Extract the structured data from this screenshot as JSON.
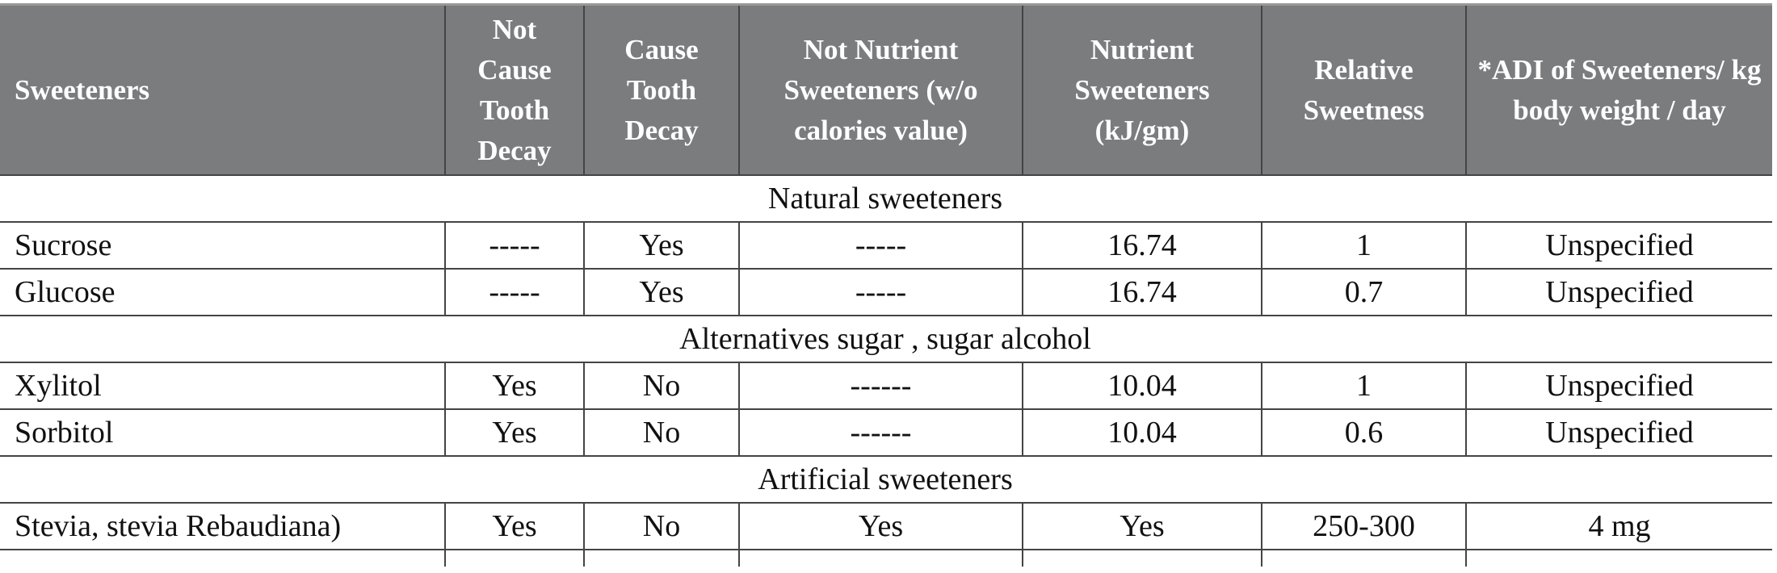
{
  "table": {
    "headers": [
      "Sweeteners",
      "Not Cause Tooth Decay",
      "Cause Tooth Decay",
      "Not Nutrient Sweeteners (w/o calories value)",
      "Nutrient Sweeteners (kJ/gm)",
      "Relative Sweetness",
      "*ADI of Sweeteners/ kg body weight / day"
    ],
    "groups": [
      {
        "label": "Natural sweeteners",
        "rows": [
          [
            "Sucrose",
            "-----",
            "Yes",
            "-----",
            "16.74",
            "1",
            "Unspecified"
          ],
          [
            "Glucose",
            "-----",
            "Yes",
            "-----",
            "16.74",
            "0.7",
            "Unspecified"
          ]
        ]
      },
      {
        "label": "Alternatives sugar , sugar alcohol",
        "rows": [
          [
            "Xylitol",
            "Yes",
            "No",
            "------",
            "10.04",
            "1",
            "Unspecified"
          ],
          [
            "Sorbitol",
            "Yes",
            "No",
            "------",
            "10.04",
            "0.6",
            "Unspecified"
          ]
        ]
      },
      {
        "label": "Artificial sweeteners",
        "rows": [
          [
            "Stevia, stevia Rebaudiana)",
            "Yes",
            "No",
            "Yes",
            "Yes",
            "250-300",
            "4 mg"
          ]
        ]
      }
    ]
  }
}
